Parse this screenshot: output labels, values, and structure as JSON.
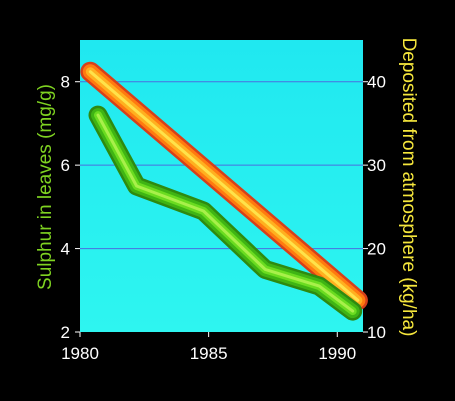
{
  "chart_data": {
    "type": "line",
    "title": "",
    "xlabel": "",
    "xlim": [
      1980,
      1991
    ],
    "x_ticks": [
      "1980",
      "1985",
      "1990"
    ],
    "left_axis": {
      "label": "Sulphur in leaves (mg/g)",
      "ylim": [
        2,
        9
      ],
      "ticks": [
        "2",
        "4",
        "6",
        "8"
      ],
      "label_color": "#7fd321"
    },
    "right_axis": {
      "label": "Deposited from atmosphere (kg/ha)",
      "ylim": [
        10,
        45
      ],
      "ticks": [
        "10",
        "20",
        "30",
        "40"
      ],
      "label_color": "#f5e63c"
    },
    "grid": "horizontal",
    "legend": "none",
    "series": [
      {
        "axis": "right",
        "color": "#ff8a00",
        "points": [
          [
            1980.4,
            41.2
          ],
          [
            1990.8,
            13.8
          ]
        ]
      },
      {
        "axis": "left",
        "color": "#4fc814",
        "points": [
          [
            1980.7,
            7.2
          ],
          [
            1982.2,
            5.5
          ],
          [
            1984.8,
            4.9
          ],
          [
            1987.2,
            3.5
          ],
          [
            1989.3,
            3.1
          ],
          [
            1990.6,
            2.5
          ]
        ]
      }
    ],
    "colors": {
      "background": "#000000",
      "plot_area": "#22f0f2",
      "axis_text": "#ffffff"
    }
  }
}
